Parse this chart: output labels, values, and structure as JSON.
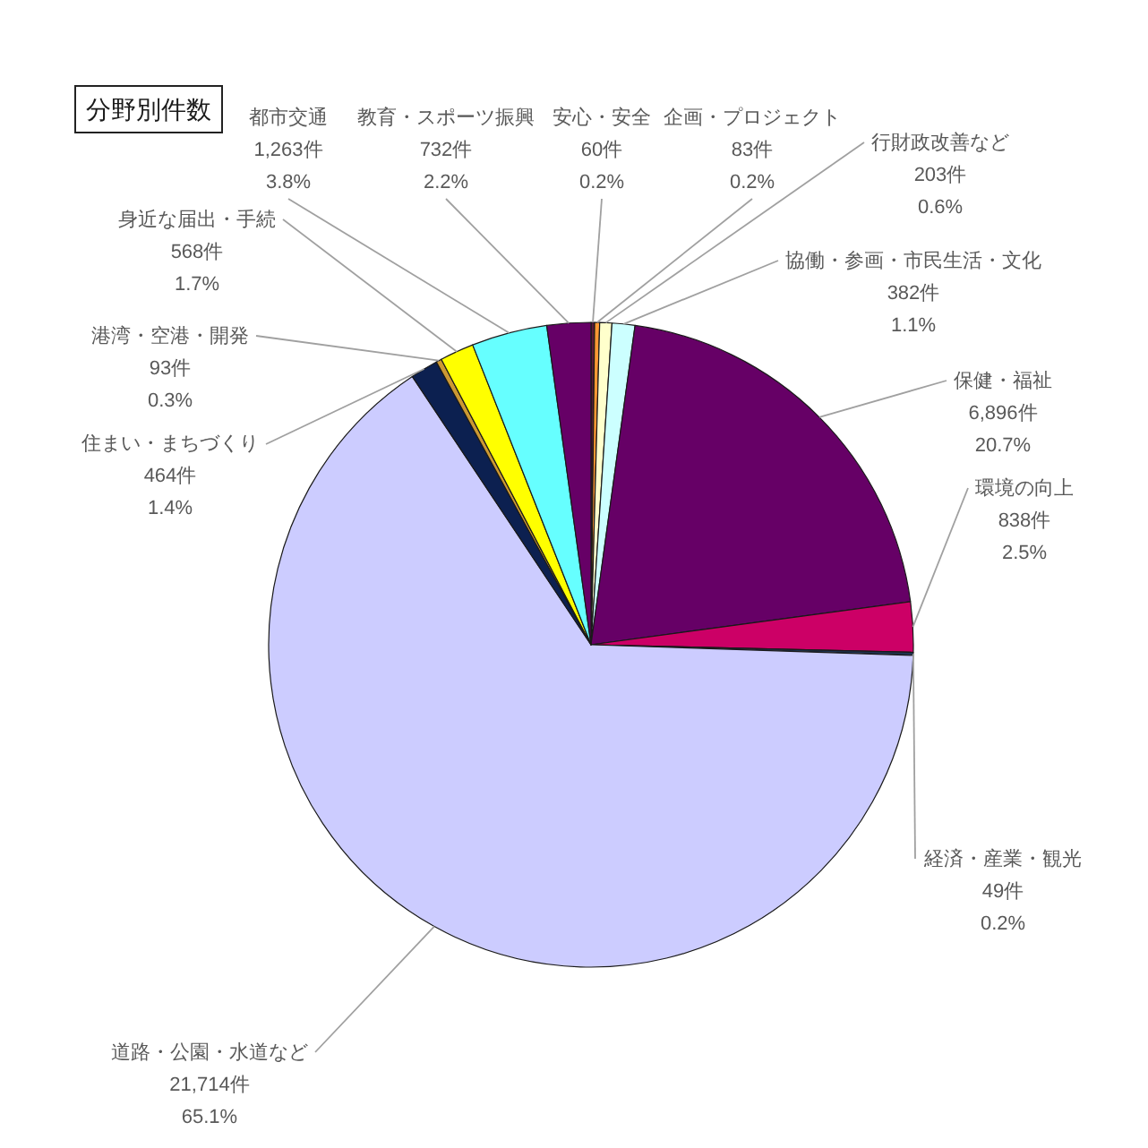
{
  "chart_data": {
    "type": "pie",
    "title": "分野別件数",
    "categories": [
      "安心・安全",
      "企画・プロジェクト",
      "行財政改善など",
      "協働・参画・市民生活・文化",
      "保健・福祉",
      "環境の向上",
      "経済・産業・観光",
      "道路・公園・水道など",
      "住まい・まちづくり",
      "港湾・空港・開発",
      "身近な届出・手続",
      "都市交通",
      "教育・スポーツ振興"
    ],
    "values": [
      60,
      83,
      203,
      382,
      6896,
      838,
      49,
      21714,
      464,
      93,
      568,
      1263,
      732
    ],
    "value_labels": [
      "60件\n0.2%",
      "83件\n0.2%",
      "203件\n0.6%",
      "382件\n1.1%",
      "6,896件\n20.7%",
      "838件\n2.5%",
      "49件\n0.2%",
      "21,714件\n65.1%",
      "464件\n1.4%",
      "93件\n0.3%",
      "568件\n1.7%",
      "1,263件\n3.8%",
      "732件\n2.2%"
    ],
    "colors": [
      "#5a1a3a",
      "#ff9933",
      "#ffffcc",
      "#ccffff",
      "#660066",
      "#cc0066",
      "#1f3350",
      "#ccccff",
      "#0c2050",
      "#cc9933",
      "#ffff00",
      "#66ffff",
      "#660066"
    ]
  }
}
